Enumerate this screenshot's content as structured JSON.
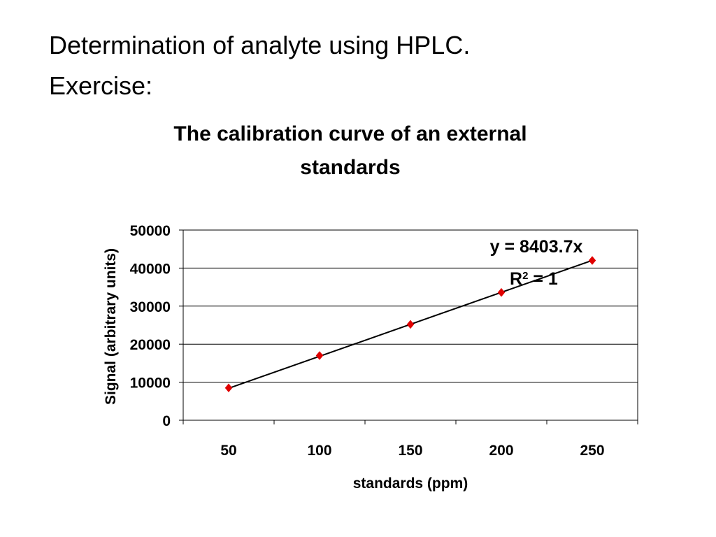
{
  "slide": {
    "title": "Determination of analyte using HPLC.",
    "subtitle": "Exercise:"
  },
  "chart_data": {
    "type": "scatter",
    "title_lines": [
      "The calibration curve of an external",
      "standards"
    ],
    "xlabel": "standards (ppm)",
    "ylabel": "Signal (arbitrary units)",
    "categories": [
      50,
      100,
      150,
      200,
      250
    ],
    "xlim": [
      25,
      275
    ],
    "ylim": [
      0,
      50000
    ],
    "y_ticks": [
      0,
      10000,
      20000,
      30000,
      40000,
      50000
    ],
    "grid": "horizontal",
    "legend": "none",
    "series": [
      {
        "values": [
          8500,
          17000,
          25200,
          33600,
          42000
        ],
        "marker": "diamond",
        "color": "#e00000"
      }
    ],
    "trendline": {
      "type": "linear",
      "slope": 8403.7,
      "color": "#000000",
      "equation": "y = 8403.7x",
      "r_squared_prefix": "R",
      "r_squared_exponent": "2",
      "r_squared_suffix": " = 1"
    }
  }
}
